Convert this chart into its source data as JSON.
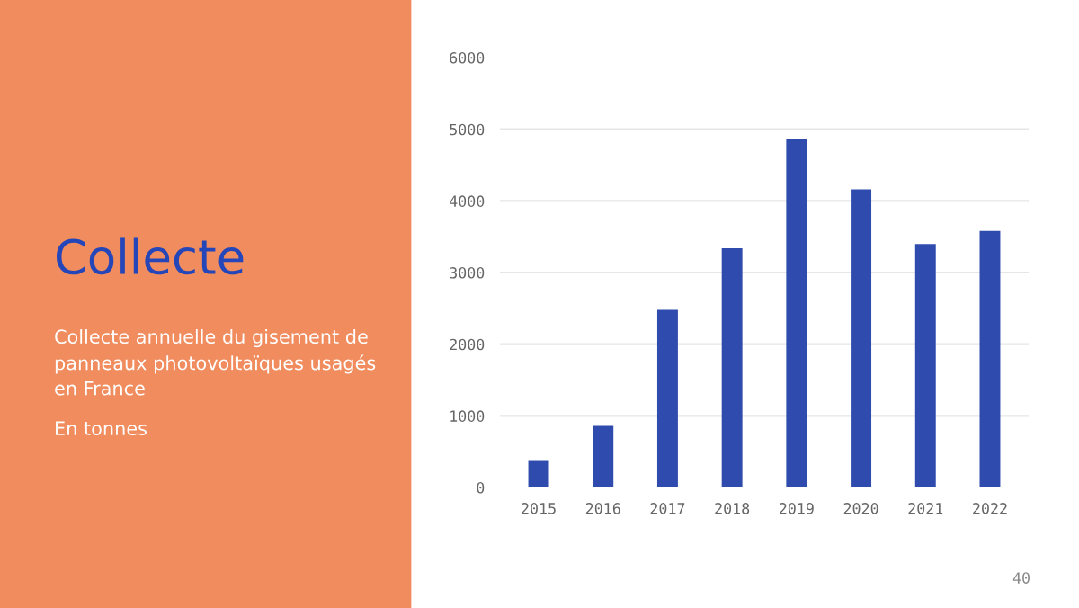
{
  "chart_data": {
    "type": "bar",
    "title": "Collecte",
    "subtitle": "Collecte annuelle du gisement de\npanneaux photovoltaïques usagés\nen France",
    "annotations": [
      "En tonnes",
      "40"
    ],
    "categories": [
      "2015",
      "2016",
      "2017",
      "2018",
      "2019",
      "2020",
      "2021",
      "2022"
    ],
    "values": [
      370,
      860,
      2480,
      3340,
      4870,
      4160,
      3400,
      3580
    ],
    "color": "#2e4bad",
    "ylim": [
      0,
      6000
    ],
    "yticks": [
      0,
      1000,
      2000,
      3000,
      4000,
      5000,
      6000
    ],
    "grid": "y",
    "legend": false
  }
}
